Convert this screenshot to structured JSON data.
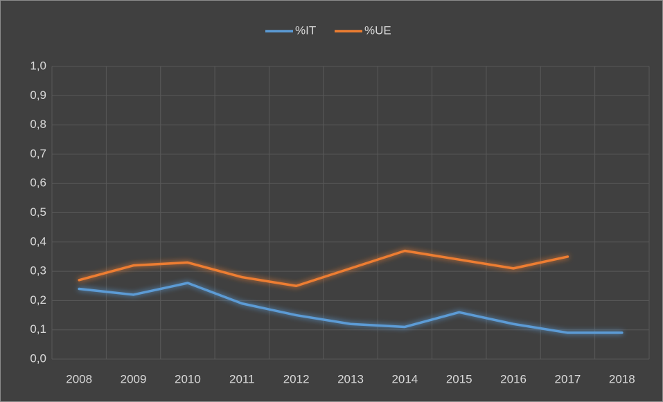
{
  "chart_data": {
    "type": "line",
    "categories": [
      "2008",
      "2009",
      "2010",
      "2011",
      "2012",
      "2013",
      "2014",
      "2015",
      "2016",
      "2017",
      "2018"
    ],
    "series": [
      {
        "name": "%IT",
        "color": "#5b9bd5",
        "values": [
          0.24,
          0.22,
          0.26,
          0.19,
          0.15,
          0.12,
          0.11,
          0.16,
          0.12,
          0.09,
          0.09
        ]
      },
      {
        "name": "%UE",
        "color": "#ed7d31",
        "values": [
          0.27,
          0.32,
          0.33,
          0.28,
          0.25,
          0.31,
          0.37,
          0.34,
          0.31,
          0.35,
          null
        ]
      }
    ],
    "ylim": [
      0,
      1
    ],
    "yticks": [
      {
        "value": 0,
        "label": "0,0"
      },
      {
        "value": 0.1,
        "label": "0,1"
      },
      {
        "value": 0.2,
        "label": "0,2"
      },
      {
        "value": 0.3,
        "label": "0,3"
      },
      {
        "value": 0.4,
        "label": "0,4"
      },
      {
        "value": 0.5,
        "label": "0,5"
      },
      {
        "value": 0.6,
        "label": "0,6"
      },
      {
        "value": 0.7,
        "label": "0,7"
      },
      {
        "value": 0.8,
        "label": "0,8"
      },
      {
        "value": 0.9,
        "label": "0,9"
      },
      {
        "value": 1,
        "label": "1,0"
      }
    ],
    "grid": true,
    "legend": "top"
  }
}
